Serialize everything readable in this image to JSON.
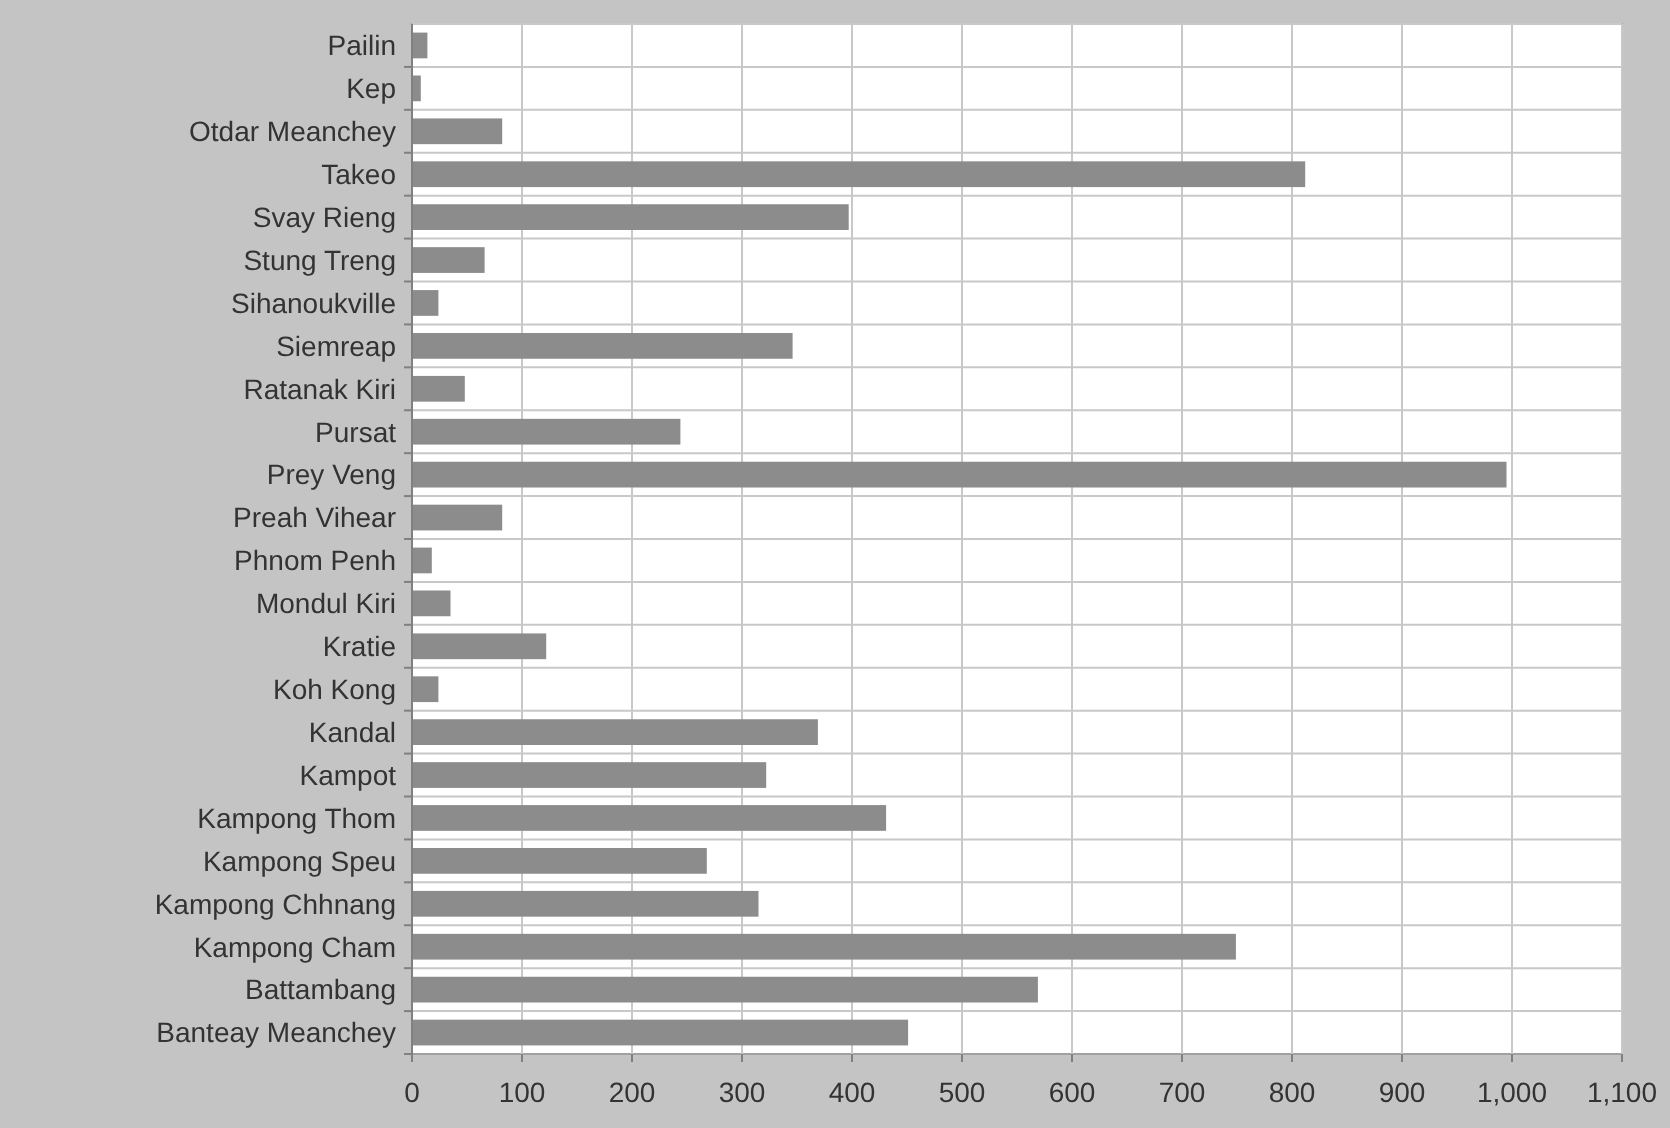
{
  "chart_data": {
    "type": "bar",
    "orientation": "horizontal",
    "categories": [
      "Pailin",
      "Kep",
      "Otdar Meanchey",
      "Takeo",
      "Svay Rieng",
      "Stung Treng",
      "Sihanoukville",
      "Siemreap",
      "Ratanak Kiri",
      "Pursat",
      "Prey Veng",
      "Preah Vihear",
      "Phnom Penh",
      "Mondul Kiri",
      "Kratie",
      "Koh Kong",
      "Kandal",
      "Kampot",
      "Kampong Thom",
      "Kampong Speu",
      "Kampong Chhnang",
      "Kampong Cham",
      "Battambang",
      "Banteay Meanchey"
    ],
    "values": [
      14,
      8,
      82,
      812,
      397,
      66,
      24,
      346,
      48,
      244,
      995,
      82,
      18,
      35,
      122,
      24,
      369,
      322,
      431,
      268,
      315,
      749,
      569,
      451
    ],
    "color": "#8c8c8c",
    "xlim": [
      0,
      1100
    ],
    "xticks": [
      0,
      100,
      200,
      300,
      400,
      500,
      600,
      700,
      800,
      900,
      {
        "value": 1000,
        "label": "1,000"
      },
      {
        "value": 1100,
        "label": "1,100"
      }
    ],
    "grid": true
  }
}
